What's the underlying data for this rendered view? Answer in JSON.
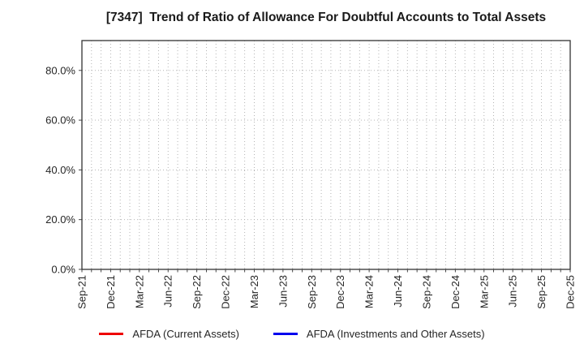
{
  "window": {
    "background": "#ffffff"
  },
  "chart_data": {
    "type": "line",
    "title": "[7347]  Trend of Ratio of Allowance For Doubtful Accounts to Total Assets",
    "xlabel": "",
    "ylabel": "",
    "x_tick_labels": [
      "Sep-21",
      "Dec-21",
      "Mar-22",
      "Jun-22",
      "Sep-22",
      "Dec-22",
      "Mar-23",
      "Jun-23",
      "Sep-23",
      "Dec-23",
      "Mar-24",
      "Jun-24",
      "Sep-24",
      "Dec-24",
      "Mar-25",
      "Jun-25",
      "Sep-25",
      "Dec-25"
    ],
    "x_total_months": 52,
    "x_months_between_labels": 3,
    "ylim": [
      0,
      92
    ],
    "yticks": [
      0,
      20,
      40,
      60,
      80
    ],
    "ytick_labels": [
      "0.0%",
      "20.0%",
      "40.0%",
      "60.0%",
      "80.0%"
    ],
    "grid": true,
    "grid_style": "dotted",
    "legend_position": "bottom",
    "series": [
      {
        "name": "AFDA (Current Assets)",
        "color": "#ee0000",
        "values": []
      },
      {
        "name": "AFDA (Investments and Other Assets)",
        "color": "#0000ee",
        "values": []
      }
    ],
    "colors": {
      "axis": "#333333",
      "grid": "#ababab",
      "tick_text": "#262626",
      "title_text": "#1a1a1a",
      "background": "#ffffff"
    }
  }
}
